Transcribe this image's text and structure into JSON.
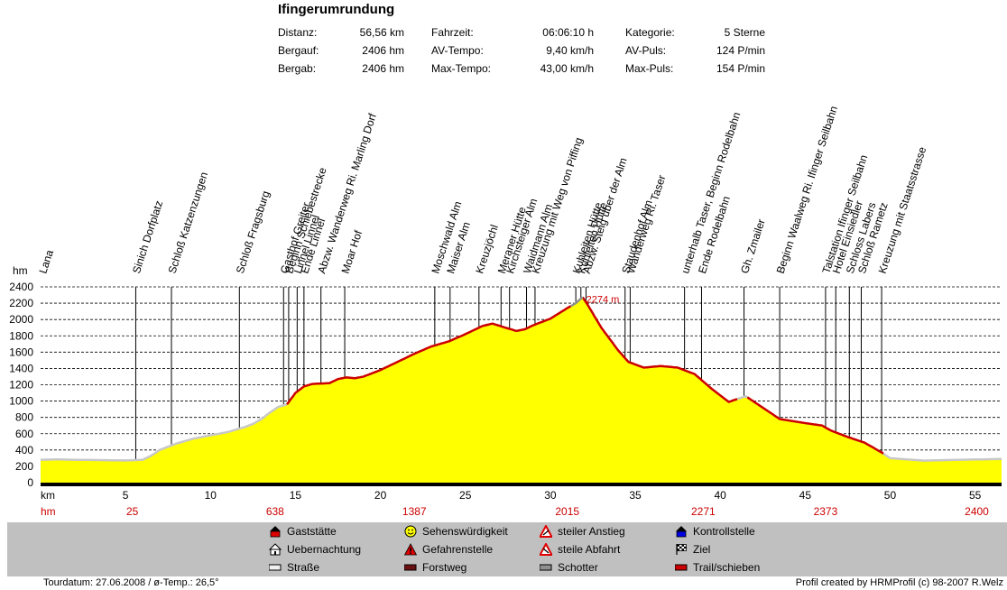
{
  "title": "Ifingerumrundung",
  "stats": [
    {
      "label": "Distanz:",
      "value": "56,56 km"
    },
    {
      "label": "Bergauf:",
      "value": "2406 hm"
    },
    {
      "label": "Bergab:",
      "value": "2406 hm"
    },
    {
      "label": "Fahrzeit:",
      "value": "06:06:10 h"
    },
    {
      "label": "AV-Tempo:",
      "value": "9,40 km/h"
    },
    {
      "label": "Max-Tempo:",
      "value": "43,00 km/h"
    },
    {
      "label": "Kategorie:",
      "value": "5 Sterne"
    },
    {
      "label": "AV-Puls:",
      "value": "124 P/min"
    },
    {
      "label": "Max-Puls:",
      "value": "154 P/min"
    }
  ],
  "chart_data": {
    "type": "area",
    "xlabel": "km",
    "ylabel": "hm",
    "xlim": [
      0,
      56.56
    ],
    "ylim": [
      0,
      2400
    ],
    "xticks": [
      5,
      10,
      15,
      20,
      25,
      30,
      35,
      40,
      45,
      50,
      55
    ],
    "yticks": [
      0,
      200,
      400,
      600,
      800,
      1000,
      1200,
      1400,
      1600,
      1800,
      2000,
      2200,
      2400
    ],
    "grid": "horizontal dashed",
    "max_label": "2274 m",
    "fill_color": "#ffff00",
    "profile": [
      [
        0,
        280
      ],
      [
        1,
        285
      ],
      [
        2,
        280
      ],
      [
        3,
        278
      ],
      [
        4,
        275
      ],
      [
        5,
        272
      ],
      [
        6,
        280
      ],
      [
        6.5,
        330
      ],
      [
        7,
        400
      ],
      [
        8,
        480
      ],
      [
        9,
        540
      ],
      [
        10,
        580
      ],
      [
        11,
        620
      ],
      [
        12,
        680
      ],
      [
        12.5,
        720
      ],
      [
        13,
        780
      ],
      [
        13.5,
        860
      ],
      [
        14,
        930
      ],
      [
        14.5,
        960
      ],
      [
        15,
        1100
      ],
      [
        15.5,
        1180
      ],
      [
        16,
        1210
      ],
      [
        17,
        1220
      ],
      [
        17.5,
        1270
      ],
      [
        18,
        1290
      ],
      [
        18.5,
        1280
      ],
      [
        19,
        1300
      ],
      [
        20,
        1380
      ],
      [
        21,
        1480
      ],
      [
        22,
        1580
      ],
      [
        23,
        1670
      ],
      [
        24,
        1730
      ],
      [
        25,
        1820
      ],
      [
        26,
        1920
      ],
      [
        26.6,
        1950
      ],
      [
        27.2,
        1910
      ],
      [
        28,
        1860
      ],
      [
        28.5,
        1880
      ],
      [
        29,
        1930
      ],
      [
        30,
        2010
      ],
      [
        31,
        2140
      ],
      [
        31.5,
        2200
      ],
      [
        31.9,
        2274
      ],
      [
        32.2,
        2180
      ],
      [
        33,
        1900
      ],
      [
        34,
        1620
      ],
      [
        34.6,
        1480
      ],
      [
        35.5,
        1410
      ],
      [
        36.5,
        1430
      ],
      [
        37.5,
        1410
      ],
      [
        38.5,
        1330
      ],
      [
        39.5,
        1150
      ],
      [
        40.5,
        990
      ],
      [
        41.5,
        1060
      ],
      [
        42.5,
        920
      ],
      [
        43.5,
        780
      ],
      [
        45,
        730
      ],
      [
        46,
        700
      ],
      [
        46.5,
        640
      ],
      [
        47.5,
        560
      ],
      [
        48.5,
        490
      ],
      [
        49.5,
        370
      ],
      [
        50,
        300
      ],
      [
        52,
        270
      ],
      [
        54,
        280
      ],
      [
        56.56,
        290
      ]
    ],
    "surfaces": [
      {
        "type": "Straße",
        "ranges": [
          [
            0,
            14.5
          ],
          [
            41,
            41.6
          ],
          [
            49.6,
            56.56
          ]
        ]
      },
      {
        "type": "Trail/schieben",
        "ranges": [
          [
            14.5,
            31.2
          ],
          [
            31.9,
            41
          ],
          [
            41.6,
            49.6
          ]
        ]
      },
      {
        "type": "Schotter",
        "ranges": [
          [
            31.2,
            31.9
          ]
        ]
      }
    ],
    "waypoints": [
      {
        "km": 0.1,
        "name": "Lana"
      },
      {
        "km": 5.6,
        "name": "Sinich Dorfplatz"
      },
      {
        "km": 7.7,
        "name": "Schloß Katzenzungen"
      },
      {
        "km": 11.7,
        "name": "Schloß Fragsburg"
      },
      {
        "km": 14.3,
        "name": "Gasthof Greiter"
      },
      {
        "km": 14.6,
        "name": "Beginn Schiebestrecke"
      },
      {
        "km": 15.1,
        "name": "Linnel Linnel"
      },
      {
        "km": 15.5,
        "name": "Ende Linnel"
      },
      {
        "km": 16.5,
        "name": "Abzw. Wanderweg Ri. Marling Dorf"
      },
      {
        "km": 17.9,
        "name": "Moar Hof"
      },
      {
        "km": 23.2,
        "name": "Moschwald Alm"
      },
      {
        "km": 24.1,
        "name": "Maiser Alm"
      },
      {
        "km": 25.8,
        "name": "Kreuzjöchl"
      },
      {
        "km": 27.1,
        "name": "Meraner Hütte"
      },
      {
        "km": 27.6,
        "name": "Kirchsteiger Alm"
      },
      {
        "km": 28.6,
        "name": "Waidmann Alm"
      },
      {
        "km": 29.1,
        "name": "Kreuzung mit Weg von Piffing"
      },
      {
        "km": 31.5,
        "name": "Kuhleiten Hütte"
      },
      {
        "km": 31.8,
        "name": "Kuhleiten Hütte"
      },
      {
        "km": 32.1,
        "name": "Abzw. Steig über der Alm"
      },
      {
        "km": 34.4,
        "name": "Staudenhof Alm"
      },
      {
        "km": 34.7,
        "name": "Wanderweg Ri. Taser"
      },
      {
        "km": 37.9,
        "name": "unterhalb Taser, Beginn Rodelbahn"
      },
      {
        "km": 38.9,
        "name": "Ende Rodelbahn"
      },
      {
        "km": 41.4,
        "name": "Gh. Zmailer"
      },
      {
        "km": 43.5,
        "name": "Beginn Waalweg Ri. Ifinger Seilbahn"
      },
      {
        "km": 46.2,
        "name": "Talstation Ifinger Seilbahn"
      },
      {
        "km": 46.8,
        "name": "Hotel Einsiedler"
      },
      {
        "km": 47.6,
        "name": "Schloss Labers"
      },
      {
        "km": 48.3,
        "name": "Schloß Rametz"
      },
      {
        "km": 49.5,
        "name": "Kreuzung mit Staatsstrasse"
      }
    ],
    "hm_row_label": "hm",
    "hm_row": [
      {
        "km": 5.4,
        "value": "25"
      },
      {
        "km": 13.8,
        "value": "638"
      },
      {
        "km": 22.0,
        "value": "1387"
      },
      {
        "km": 31.0,
        "value": "2015"
      },
      {
        "km": 39.0,
        "value": "2271"
      },
      {
        "km": 46.2,
        "value": "2373"
      },
      {
        "km": 55.1,
        "value": "2400"
      }
    ]
  },
  "legend": [
    {
      "label": "Gaststätte",
      "icon": "house-red-icon"
    },
    {
      "label": "Uebernachtung",
      "icon": "house-white-icon"
    },
    {
      "label": "Straße",
      "icon": "swatch-white-icon",
      "color": "#f0f0f0"
    },
    {
      "label": "Sehenswürdigkeit",
      "icon": "smiley-icon"
    },
    {
      "label": "Gefahrenstelle",
      "icon": "warning-icon"
    },
    {
      "label": "Forstweg",
      "icon": "swatch-darkred-icon",
      "color": "#6b1010"
    },
    {
      "label": "steiler Anstieg",
      "icon": "steep-up-icon"
    },
    {
      "label": "steile Abfahrt",
      "icon": "steep-down-icon"
    },
    {
      "label": "Schotter",
      "icon": "swatch-gray-icon",
      "color": "#909090"
    },
    {
      "label": "Kontrollstelle",
      "icon": "house-blue-icon"
    },
    {
      "label": "Ziel",
      "icon": "finish-flag-icon"
    },
    {
      "label": "Trail/schieben",
      "icon": "swatch-red-icon",
      "color": "#cc0000"
    }
  ],
  "footer": {
    "left": "Tourdatum: 27.06.2008  /  ø-Temp.: 26,5°",
    "right": "Profil created by HRMProfil (c) 98-2007 R.Welz"
  }
}
